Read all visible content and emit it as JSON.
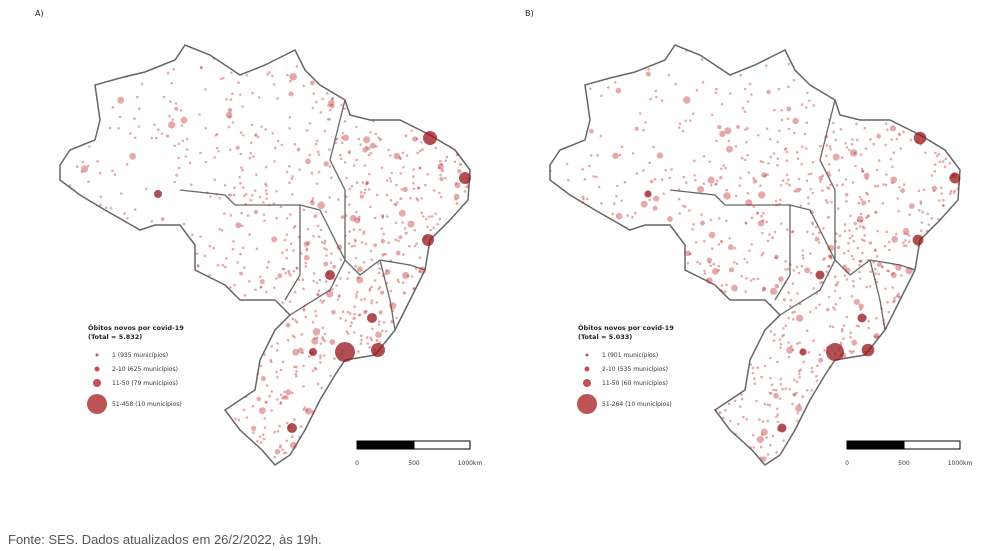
{
  "panels": [
    {
      "label": "A)",
      "legend": {
        "title": "Óbitos novos por covid-19",
        "total": "(Total = 5.832)",
        "entries": [
          "1 (935 municípios)",
          "2-10 (625 municípios)",
          "11-50 (79 municípios)",
          "51-458 (10 municípios)"
        ]
      },
      "scale": [
        "0",
        "500",
        "1000km"
      ]
    },
    {
      "label": "B)",
      "legend": {
        "title": "Óbitos novos por covid-19",
        "total": "(Total = 5.033)",
        "entries": [
          "1 (901 municípios)",
          "2-10 (535 municípios)",
          "11-50 (60 municípios)",
          "51-264 (10 municípios)"
        ]
      },
      "scale": [
        "0",
        "500",
        "1000km"
      ]
    }
  ],
  "caption": "Fonte: SES. Dados atualizados em 26/2/2022, às 19h."
}
